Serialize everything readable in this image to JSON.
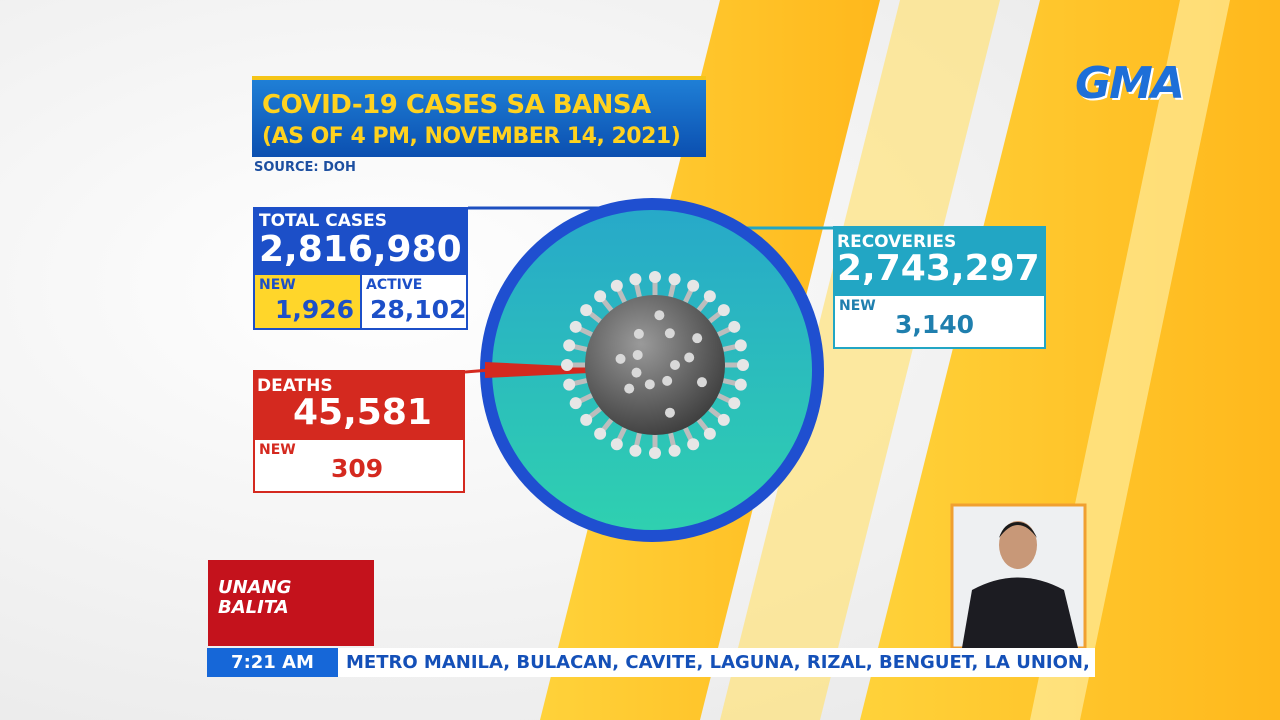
{
  "header": {
    "title": "COVID-19 CASES SA BANSA",
    "subtitle": "(AS OF 4 PM, NOVEMBER 14, 2021)",
    "source": "SOURCE: DOH"
  },
  "total": {
    "label": "TOTAL CASES",
    "value": "2,816,980",
    "new_label": "NEW",
    "new_value": "1,926",
    "active_label": "ACTIVE",
    "active_value": "28,102"
  },
  "deaths": {
    "label": "DEATHS",
    "value": "45,581",
    "new_label": "NEW",
    "new_value": "309"
  },
  "recoveries": {
    "label": "RECOVERIES",
    "value": "2,743,297",
    "new_label": "NEW",
    "new_value": "3,140"
  },
  "logo": "GMA",
  "show": {
    "line1": "UNANG",
    "line2": "BALITA"
  },
  "ticker": {
    "time": "7:21 AM",
    "text": "METRO MANILA, BULACAN, CAVITE, LAGUNA, RIZAL, BENGUET, LA UNION,"
  }
}
